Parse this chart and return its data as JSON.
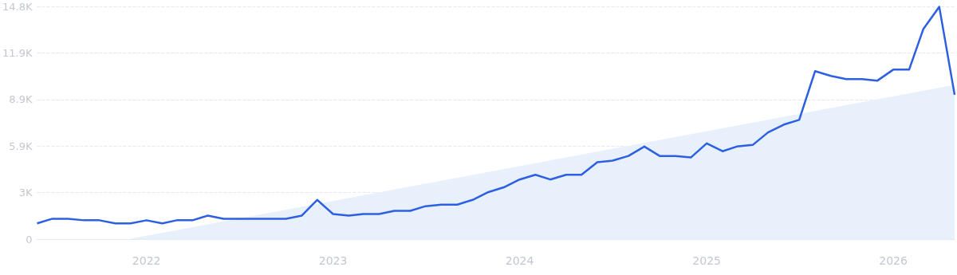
{
  "chart_data": {
    "type": "line",
    "x": [
      "2021-06",
      "2021-07",
      "2021-08",
      "2021-09",
      "2021-10",
      "2021-11",
      "2021-12",
      "2022-01",
      "2022-02",
      "2022-03",
      "2022-04",
      "2022-05",
      "2022-06",
      "2022-07",
      "2022-08",
      "2022-09",
      "2022-10",
      "2022-11",
      "2022-12",
      "2023-01",
      "2023-02",
      "2023-03",
      "2023-04",
      "2023-05",
      "2023-06",
      "2023-07",
      "2023-08",
      "2023-09",
      "2023-10",
      "2023-11",
      "2023-12",
      "2024-01",
      "2024-02",
      "2024-03",
      "2024-04",
      "2024-05",
      "2024-06",
      "2024-07",
      "2024-08",
      "2024-09",
      "2024-10",
      "2024-11",
      "2024-12",
      "2025-01",
      "2025-02",
      "2025-03",
      "2025-04",
      "2025-05",
      "2025-06",
      "2025-07",
      "2025-08",
      "2025-09",
      "2025-10",
      "2025-11",
      "2025-12",
      "2026-01",
      "2026-02",
      "2026-03",
      "2026-04",
      "2026-05"
    ],
    "series": [
      {
        "type": "area",
        "color": "#e8f0fb",
        "x": [
          "2021-12",
          "2026-05"
        ],
        "values": [
          0,
          9800
        ]
      },
      {
        "color": "#2d5fe3",
        "values": [
          1000,
          1300,
          1300,
          1200,
          1200,
          1000,
          1000,
          1200,
          1000,
          1200,
          1200,
          1500,
          1300,
          1300,
          1300,
          1300,
          1300,
          1500,
          2500,
          1600,
          1500,
          1600,
          1600,
          1800,
          1800,
          2100,
          2200,
          2200,
          2500,
          3000,
          3300,
          3800,
          4100,
          3800,
          4100,
          4100,
          4900,
          5000,
          5300,
          5900,
          5300,
          5300,
          5200,
          6100,
          5600,
          5900,
          6000,
          6800,
          7300,
          7600,
          10700,
          10400,
          10200,
          10200,
          10100,
          10800,
          10800,
          13400,
          14800,
          9200
        ]
      }
    ],
    "xlim": [
      "2021-06",
      "2026-05"
    ],
    "xticks": [
      "2022",
      "2023",
      "2024",
      "2025",
      "2026"
    ],
    "ylim": [
      0,
      14830
    ],
    "yticks": [
      0,
      {
        "value": 2966,
        "label": "3K"
      },
      {
        "value": 5932,
        "label": "5.9K"
      },
      {
        "value": 8898,
        "label": "8.9K"
      },
      {
        "value": 11864,
        "label": "11.9K"
      },
      {
        "value": 14830,
        "label": "14.8K"
      }
    ],
    "grid": "y",
    "marker": "none",
    "line_style": "solid"
  }
}
